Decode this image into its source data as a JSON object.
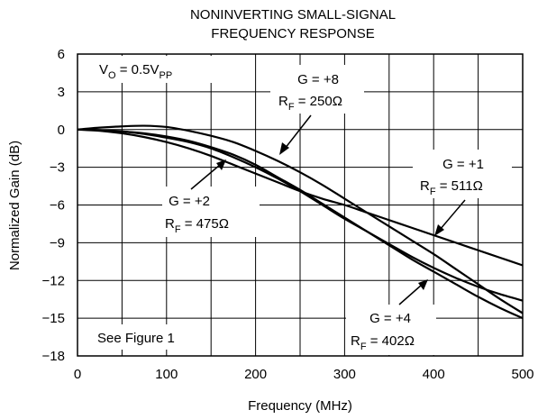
{
  "chart_data": {
    "type": "line",
    "title_lines": [
      "NONINVERTING SMALL-SIGNAL",
      "FREQUENCY RESPONSE"
    ],
    "xlabel": "Frequency (MHz)",
    "ylabel": "Normalized Gain (dB)",
    "xlim": [
      0,
      500
    ],
    "ylim": [
      -18,
      6
    ],
    "xticks": [
      0,
      100,
      200,
      300,
      400,
      500
    ],
    "yticks": [
      6,
      3,
      0,
      -3,
      -6,
      -9,
      -12,
      -15,
      -18
    ],
    "ytick_labels": [
      "6",
      "3",
      "0",
      "−3",
      "−6",
      "−9",
      "−12",
      "−15",
      "−18"
    ],
    "grid": true,
    "series": [
      {
        "key": "g8",
        "x": [
          0,
          25,
          50,
          75,
          100,
          125,
          150,
          175,
          200,
          225,
          250,
          275,
          300,
          325,
          350,
          375,
          400,
          425,
          450,
          475,
          500
        ],
        "y": [
          0,
          0.15,
          0.25,
          0.3,
          0.2,
          -0.1,
          -0.5,
          -1.0,
          -1.7,
          -2.5,
          -3.4,
          -4.4,
          -5.5,
          -6.6,
          -7.7,
          -8.8,
          -9.9,
          -11.1,
          -12.3,
          -13.5,
          -14.6
        ]
      },
      {
        "key": "g1",
        "x": [
          0,
          25,
          50,
          75,
          100,
          125,
          150,
          175,
          200,
          225,
          250,
          275,
          300,
          325,
          350,
          375,
          400,
          425,
          450,
          475,
          500
        ],
        "y": [
          0,
          -0.1,
          -0.3,
          -0.6,
          -1.0,
          -1.5,
          -2.1,
          -2.8,
          -3.5,
          -4.2,
          -4.9,
          -5.5,
          -6.0,
          -6.6,
          -7.2,
          -7.8,
          -8.4,
          -9.0,
          -9.6,
          -10.2,
          -10.8
        ]
      },
      {
        "key": "g2",
        "x": [
          0,
          25,
          50,
          75,
          100,
          125,
          150,
          175,
          200,
          225,
          250,
          275,
          300,
          325,
          350,
          375,
          400,
          425,
          450,
          475,
          500
        ],
        "y": [
          0,
          -0.05,
          -0.15,
          -0.35,
          -0.65,
          -1.0,
          -1.5,
          -2.2,
          -3.0,
          -3.9,
          -4.9,
          -6.0,
          -7.1,
          -8.1,
          -9.1,
          -10.1,
          -11.0,
          -11.8,
          -12.5,
          -13.1,
          -13.6
        ]
      },
      {
        "key": "g4",
        "x": [
          0,
          25,
          50,
          75,
          100,
          125,
          150,
          175,
          200,
          225,
          250,
          275,
          300,
          325,
          350,
          375,
          400,
          425,
          450,
          475,
          500
        ],
        "y": [
          0,
          -0.05,
          -0.15,
          -0.3,
          -0.55,
          -0.9,
          -1.4,
          -2.0,
          -2.8,
          -3.8,
          -4.8,
          -5.9,
          -7.0,
          -8.1,
          -9.2,
          -10.3,
          -11.3,
          -12.3,
          -13.3,
          -14.2,
          -15.0
        ]
      }
    ],
    "annotations": {
      "vo": {
        "main": "V",
        "sub1": "O",
        "mid": " = 0.5V",
        "sub2": "PP"
      },
      "g8": {
        "gain": "G = +8",
        "r": "R",
        "rsub": "F",
        "rval": " = 250Ω"
      },
      "g1": {
        "gain": "G = +1",
        "r": "R",
        "rsub": "F",
        "rval": " = 511Ω"
      },
      "g2": {
        "gain": "G = +2",
        "r": "R",
        "rsub": "F",
        "rval": " = 475Ω"
      },
      "g4": {
        "gain": "G = +4",
        "r": "R",
        "rsub": "F",
        "rval": " = 402Ω"
      },
      "see_figure": "See Figure 1"
    }
  }
}
